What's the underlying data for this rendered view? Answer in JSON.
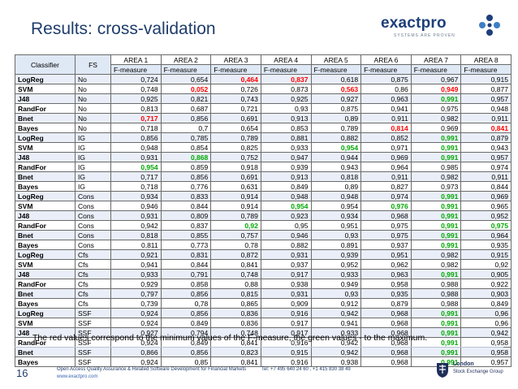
{
  "slide": {
    "title": "Results: cross-validation",
    "note": "The red values correspond to the minimum values of  the F-measure, the green values - to the maximum.",
    "page_number": "16",
    "footer_company": "Open Access Quality Assurance & Related Software Development for Financial Markets",
    "footer_tel": "Tel: +7 495 640 24 60 ,  +1 415 830 38 49",
    "footer_url": "www.exactpro.com"
  },
  "logo": {
    "name": "exactpro",
    "tagline": "SYSTEMS ARE PROVEN"
  },
  "lse": {
    "line1": "London",
    "line2": "Stock Exchange Group"
  },
  "colors": {
    "min": "#ff0000",
    "max": "#00a800",
    "title": "#1f3d6b"
  },
  "table": {
    "head": {
      "classifier": "Classifier",
      "fs": "FS"
    },
    "areas": [
      "AREA 1",
      "AREA 2",
      "AREA 3",
      "AREA 4",
      "AREA 5",
      "AREA 6",
      "AREA 7",
      "AREA 8"
    ],
    "metric": "F-measure",
    "rows": [
      {
        "c": "LogReg",
        "f": "No",
        "v": [
          "0,724",
          "0,654",
          "0,464",
          "0,837",
          "0,618",
          "0,875",
          "0,967",
          "0,915"
        ],
        "h": [
          "",
          "",
          "r",
          "r",
          "",
          "",
          "",
          ""
        ]
      },
      {
        "c": "SVM",
        "f": "No",
        "v": [
          "0,748",
          "0,052",
          "0,726",
          "0,873",
          "0,563",
          "0,86",
          "0,949",
          "0,877"
        ],
        "h": [
          "",
          "r",
          "",
          "",
          "r",
          "",
          "r",
          ""
        ]
      },
      {
        "c": "J48",
        "f": "No",
        "v": [
          "0,925",
          "0,821",
          "0,743",
          "0,925",
          "0,927",
          "0,963",
          "0,991",
          "0,957"
        ],
        "h": [
          "",
          "",
          "",
          "",
          "",
          "",
          "g",
          ""
        ]
      },
      {
        "c": "RandFor",
        "f": "No",
        "v": [
          "0,813",
          "0,687",
          "0,721",
          "0,93",
          "0,875",
          "0,941",
          "0,975",
          "0,948"
        ],
        "h": [
          "",
          "",
          "",
          "",
          "",
          "",
          "",
          ""
        ]
      },
      {
        "c": "Bnet",
        "f": "No",
        "v": [
          "0,717",
          "0,856",
          "0,691",
          "0,913",
          "0,89",
          "0,911",
          "0,982",
          "0,911"
        ],
        "h": [
          "r",
          "",
          "",
          "",
          "",
          "",
          "",
          ""
        ]
      },
      {
        "c": "Bayes",
        "f": "No",
        "v": [
          "0,718",
          "0,7",
          "0,654",
          "0,853",
          "0,789",
          "0,814",
          "0,969",
          "0,841"
        ],
        "h": [
          "",
          "",
          "",
          "",
          "",
          "r",
          "",
          "r"
        ]
      },
      {
        "c": "LogReg",
        "f": "IG",
        "v": [
          "0,856",
          "0,785",
          "0,789",
          "0,881",
          "0,882",
          "0,852",
          "0,991",
          "0,879"
        ],
        "h": [
          "",
          "",
          "",
          "",
          "",
          "",
          "g",
          ""
        ]
      },
      {
        "c": "SVM",
        "f": "IG",
        "v": [
          "0,948",
          "0,854",
          "0,825",
          "0,933",
          "0,954",
          "0,971",
          "0,991",
          "0,943"
        ],
        "h": [
          "",
          "",
          "",
          "",
          "g",
          "",
          "g",
          ""
        ]
      },
      {
        "c": "J48",
        "f": "IG",
        "v": [
          "0,931",
          "0,868",
          "0,752",
          "0,947",
          "0,944",
          "0,969",
          "0,991",
          "0,957"
        ],
        "h": [
          "",
          "g",
          "",
          "",
          "",
          "",
          "g",
          ""
        ]
      },
      {
        "c": "RandFor",
        "f": "IG",
        "v": [
          "0,954",
          "0,859",
          "0,918",
          "0,939",
          "0,943",
          "0,964",
          "0,985",
          "0,974"
        ],
        "h": [
          "g",
          "",
          "",
          "",
          "",
          "",
          "",
          ""
        ]
      },
      {
        "c": "Bnet",
        "f": "IG",
        "v": [
          "0,717",
          "0,856",
          "0,691",
          "0,913",
          "0,818",
          "0,911",
          "0,982",
          "0,911"
        ],
        "h": [
          "",
          "",
          "",
          "",
          "",
          "",
          "",
          ""
        ]
      },
      {
        "c": "Bayes",
        "f": "IG",
        "v": [
          "0,718",
          "0,776",
          "0,631",
          "0,849",
          "0,89",
          "0,827",
          "0,973",
          "0,844"
        ],
        "h": [
          "",
          "",
          "",
          "",
          "",
          "",
          "",
          ""
        ]
      },
      {
        "c": "LogReg",
        "f": "Cons",
        "v": [
          "0,934",
          "0,833",
          "0,914",
          "0,948",
          "0,948",
          "0,974",
          "0,991",
          "0,969"
        ],
        "h": [
          "",
          "",
          "",
          "",
          "",
          "",
          "g",
          ""
        ]
      },
      {
        "c": "SVM",
        "f": "Cons",
        "v": [
          "0,946",
          "0,844",
          "0,914",
          "0,954",
          "0,954",
          "0,976",
          "0,991",
          "0,965"
        ],
        "h": [
          "",
          "",
          "",
          "g",
          "",
          "g",
          "g",
          ""
        ]
      },
      {
        "c": "J48",
        "f": "Cons",
        "v": [
          "0,931",
          "0,809",
          "0,789",
          "0,923",
          "0,934",
          "0,968",
          "0,991",
          "0,952"
        ],
        "h": [
          "",
          "",
          "",
          "",
          "",
          "",
          "g",
          ""
        ]
      },
      {
        "c": "RandFor",
        "f": "Cons",
        "v": [
          "0,942",
          "0,837",
          "0,92",
          "0,95",
          "0,951",
          "0,975",
          "0,991",
          "0,975"
        ],
        "h": [
          "",
          "",
          "g",
          "",
          "",
          "",
          "g",
          "g"
        ]
      },
      {
        "c": "Bnet",
        "f": "Cons",
        "v": [
          "0,818",
          "0,855",
          "0,757",
          "0,946",
          "0,93",
          "0,975",
          "0,991",
          "0,964"
        ],
        "h": [
          "",
          "",
          "",
          "",
          "",
          "",
          "g",
          ""
        ]
      },
      {
        "c": "Bayes",
        "f": "Cons",
        "v": [
          "0,811",
          "0,773",
          "0,78",
          "0,882",
          "0,891",
          "0,937",
          "0,991",
          "0,935"
        ],
        "h": [
          "",
          "",
          "",
          "",
          "",
          "",
          "g",
          ""
        ]
      },
      {
        "c": "LogReg",
        "f": "Cfs",
        "v": [
          "0,921",
          "0,831",
          "0,872",
          "0,931",
          "0,939",
          "0,951",
          "0,982",
          "0,915"
        ],
        "h": [
          "",
          "",
          "",
          "",
          "",
          "",
          "",
          ""
        ]
      },
      {
        "c": "SVM",
        "f": "Cfs",
        "v": [
          "0,941",
          "0,844",
          "0,841",
          "0,937",
          "0,952",
          "0,962",
          "0,982",
          "0,92"
        ],
        "h": [
          "",
          "",
          "",
          "",
          "",
          "",
          "",
          ""
        ]
      },
      {
        "c": "J48",
        "f": "Cfs",
        "v": [
          "0,933",
          "0,791",
          "0,748",
          "0,917",
          "0,933",
          "0,963",
          "0,991",
          "0,905"
        ],
        "h": [
          "",
          "",
          "",
          "",
          "",
          "",
          "g",
          ""
        ]
      },
      {
        "c": "RandFor",
        "f": "Cfs",
        "v": [
          "0,929",
          "0,858",
          "0,88",
          "0,938",
          "0,949",
          "0,958",
          "0,988",
          "0,922"
        ],
        "h": [
          "",
          "",
          "",
          "",
          "",
          "",
          "",
          ""
        ]
      },
      {
        "c": "Bnet",
        "f": "Cfs",
        "v": [
          "0,797",
          "0,856",
          "0,815",
          "0,931",
          "0,93",
          "0,935",
          "0,988",
          "0,903"
        ],
        "h": [
          "",
          "",
          "",
          "",
          "",
          "",
          "",
          ""
        ]
      },
      {
        "c": "Bayes",
        "f": "Cfs",
        "v": [
          "0,739",
          "0,78",
          "0,865",
          "0,909",
          "0,912",
          "0,879",
          "0,988",
          "0,849"
        ],
        "h": [
          "",
          "",
          "",
          "",
          "",
          "",
          "",
          ""
        ]
      },
      {
        "c": "LogReg",
        "f": "SSF",
        "v": [
          "0,924",
          "0,856",
          "0,836",
          "0,916",
          "0,942",
          "0,968",
          "0,991",
          "0,96"
        ],
        "h": [
          "",
          "",
          "",
          "",
          "",
          "",
          "g",
          ""
        ]
      },
      {
        "c": "SVM",
        "f": "SSF",
        "v": [
          "0,924",
          "0,849",
          "0,836",
          "0,917",
          "0,941",
          "0,968",
          "0,991",
          "0,96"
        ],
        "h": [
          "",
          "",
          "",
          "",
          "",
          "",
          "g",
          ""
        ]
      },
      {
        "c": "J48",
        "f": "SSF",
        "v": [
          "0,927",
          "0,794",
          "0,748",
          "0,917",
          "0,933",
          "0,968",
          "0,991",
          "0,942"
        ],
        "h": [
          "",
          "",
          "",
          "",
          "",
          "",
          "g",
          ""
        ]
      },
      {
        "c": "RandFor",
        "f": "SSF",
        "v": [
          "0,924",
          "0,849",
          "0,841",
          "0,916",
          "0,942",
          "0,968",
          "0,991",
          "0,958"
        ],
        "h": [
          "",
          "",
          "",
          "",
          "",
          "",
          "g",
          ""
        ]
      },
      {
        "c": "Bnet",
        "f": "SSF",
        "v": [
          "0,866",
          "0,856",
          "0,823",
          "0,915",
          "0,942",
          "0,968",
          "0,991",
          "0,958"
        ],
        "h": [
          "",
          "",
          "",
          "",
          "",
          "",
          "g",
          ""
        ]
      },
      {
        "c": "Bayes",
        "f": "SSF",
        "v": [
          "0,924",
          "0,85",
          "0,841",
          "0,916",
          "0,938",
          "0,968",
          "0,991",
          "0,957"
        ],
        "h": [
          "",
          "",
          "",
          "",
          "",
          "",
          "g",
          ""
        ]
      }
    ]
  }
}
